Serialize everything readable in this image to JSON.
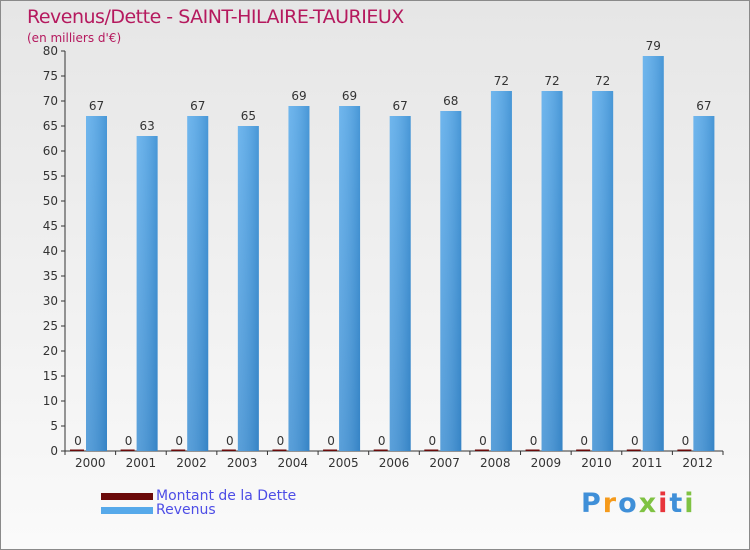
{
  "logo": {
    "text": "Proxiti",
    "colors": [
      "#3f8fd8",
      "#f59a1b",
      "#3f8fd8",
      "#7fc242",
      "#e8353b",
      "#3f8fd8",
      "#7fc242"
    ]
  },
  "chart_data": {
    "type": "bar",
    "title": "Revenus/Dette - SAINT-HILAIRE-TAURIEUX",
    "subtitle": "(en milliers d'€)",
    "xlabel": "",
    "ylabel": "",
    "ylim": [
      0,
      80
    ],
    "yticks": [
      0,
      5,
      10,
      15,
      20,
      25,
      30,
      35,
      40,
      45,
      50,
      55,
      60,
      65,
      70,
      75,
      80
    ],
    "categories": [
      "2000",
      "2001",
      "2002",
      "2003",
      "2004",
      "2005",
      "2006",
      "2007",
      "2008",
      "2009",
      "2010",
      "2011",
      "2012"
    ],
    "series": [
      {
        "name": "Montant de la Dette",
        "color": "#6b0a0a",
        "values": [
          0,
          0,
          0,
          0,
          0,
          0,
          0,
          0,
          0,
          0,
          0,
          0,
          0
        ]
      },
      {
        "name": "Revenus",
        "color": "#56a9ea",
        "values": [
          67,
          63,
          67,
          65,
          69,
          69,
          67,
          68,
          72,
          72,
          72,
          79,
          67
        ]
      }
    ],
    "legend_position": "bottom-left",
    "grid": false
  }
}
